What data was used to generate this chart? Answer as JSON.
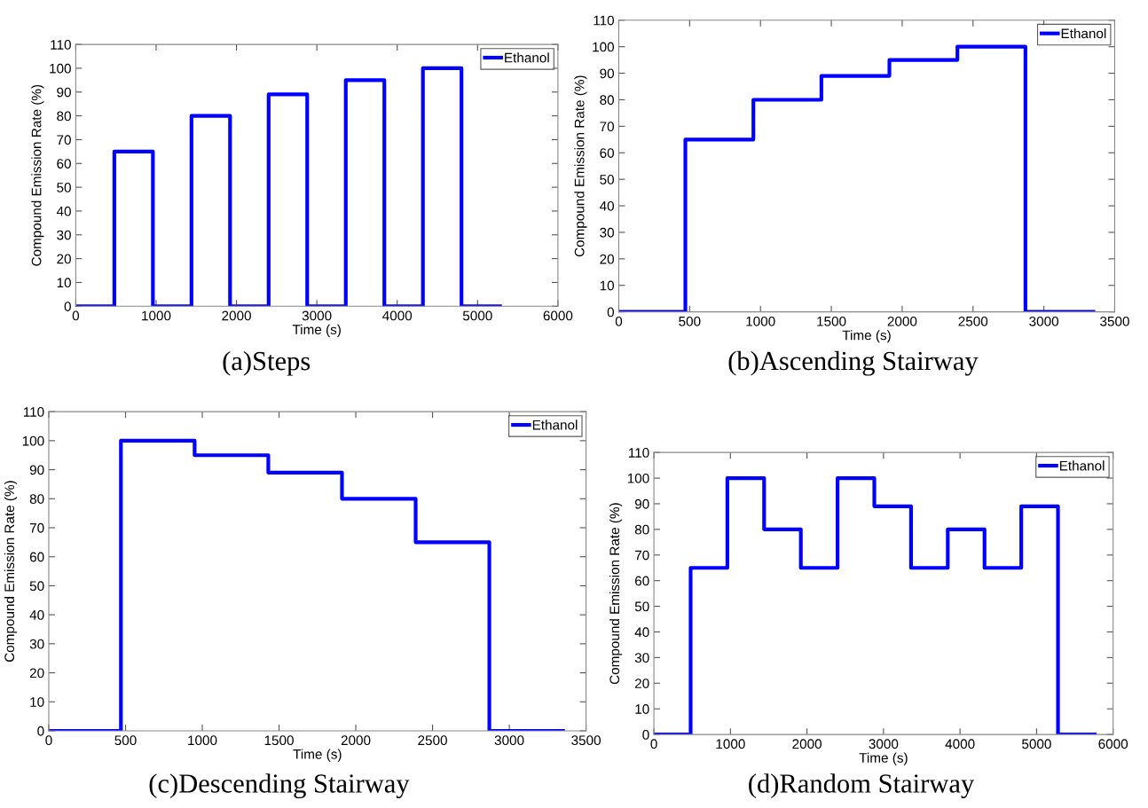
{
  "chart_data": [
    {
      "type": "step",
      "title": "(a)Steps",
      "xlabel": "Time (s)",
      "ylabel": "Compound Emission Rate (%)",
      "xlim": [
        0,
        6000
      ],
      "xticks": [
        0,
        1000,
        2000,
        3000,
        4000,
        5000,
        6000
      ],
      "ylim": [
        0,
        110
      ],
      "yticks": [
        0,
        10,
        20,
        30,
        40,
        50,
        60,
        70,
        80,
        90,
        100,
        110
      ],
      "legend": "top right",
      "grid": false,
      "series": [
        {
          "name": "Ethanol",
          "color": "#0000ff",
          "x": [
            0,
            480,
            960,
            1440,
            1920,
            2400,
            2880,
            3360,
            3840,
            4320,
            4800,
            5280
          ],
          "values": [
            0,
            65,
            0,
            80,
            0,
            89,
            0,
            95,
            0,
            100,
            0,
            0
          ]
        }
      ]
    },
    {
      "type": "step",
      "title": "(b)Ascending Stairway",
      "xlabel": "Time (s)",
      "ylabel": "Compound Emission Rate (%)",
      "xlim": [
        0,
        3500
      ],
      "xticks": [
        0,
        500,
        1000,
        1500,
        2000,
        2500,
        3000,
        3500
      ],
      "ylim": [
        0,
        110
      ],
      "yticks": [
        0,
        10,
        20,
        30,
        40,
        50,
        60,
        70,
        80,
        90,
        100,
        110
      ],
      "legend": "top right",
      "grid": false,
      "series": [
        {
          "name": "Ethanol",
          "color": "#0000ff",
          "x": [
            0,
            470,
            950,
            1430,
            1910,
            2390,
            2870,
            3350
          ],
          "values": [
            0,
            65,
            80,
            89,
            95,
            100,
            0,
            0
          ]
        }
      ]
    },
    {
      "type": "step",
      "title": "(c)Descending Stairway",
      "xlabel": "Time (s)",
      "ylabel": "Compound Emission Rate (%)",
      "xlim": [
        0,
        3500
      ],
      "xticks": [
        0,
        500,
        1000,
        1500,
        2000,
        2500,
        3000,
        3500
      ],
      "ylim": [
        0,
        110
      ],
      "yticks": [
        0,
        10,
        20,
        30,
        40,
        50,
        60,
        70,
        80,
        90,
        100,
        110
      ],
      "legend": "top right",
      "grid": false,
      "series": [
        {
          "name": "Ethanol",
          "color": "#0000ff",
          "x": [
            0,
            470,
            950,
            1430,
            1910,
            2390,
            2870,
            3350
          ],
          "values": [
            0,
            100,
            95,
            89,
            80,
            65,
            0,
            0
          ]
        }
      ]
    },
    {
      "type": "step",
      "title": "(d)Random Stairway",
      "xlabel": "Time (s)",
      "ylabel": "Compound Emission Rate (%)",
      "xlim": [
        0,
        6000
      ],
      "xticks": [
        0,
        1000,
        2000,
        3000,
        4000,
        5000,
        6000
      ],
      "ylim": [
        0,
        110
      ],
      "yticks": [
        0,
        10,
        20,
        30,
        40,
        50,
        60,
        70,
        80,
        90,
        100,
        110
      ],
      "legend": "top right",
      "grid": false,
      "series": [
        {
          "name": "Ethanol",
          "color": "#0000ff",
          "x": [
            0,
            480,
            960,
            1440,
            1920,
            2400,
            2880,
            3360,
            3840,
            4320,
            4800,
            5280,
            5760
          ],
          "values": [
            0,
            65,
            100,
            80,
            65,
            100,
            89,
            65,
            80,
            65,
            89,
            0,
            0
          ]
        }
      ]
    }
  ]
}
